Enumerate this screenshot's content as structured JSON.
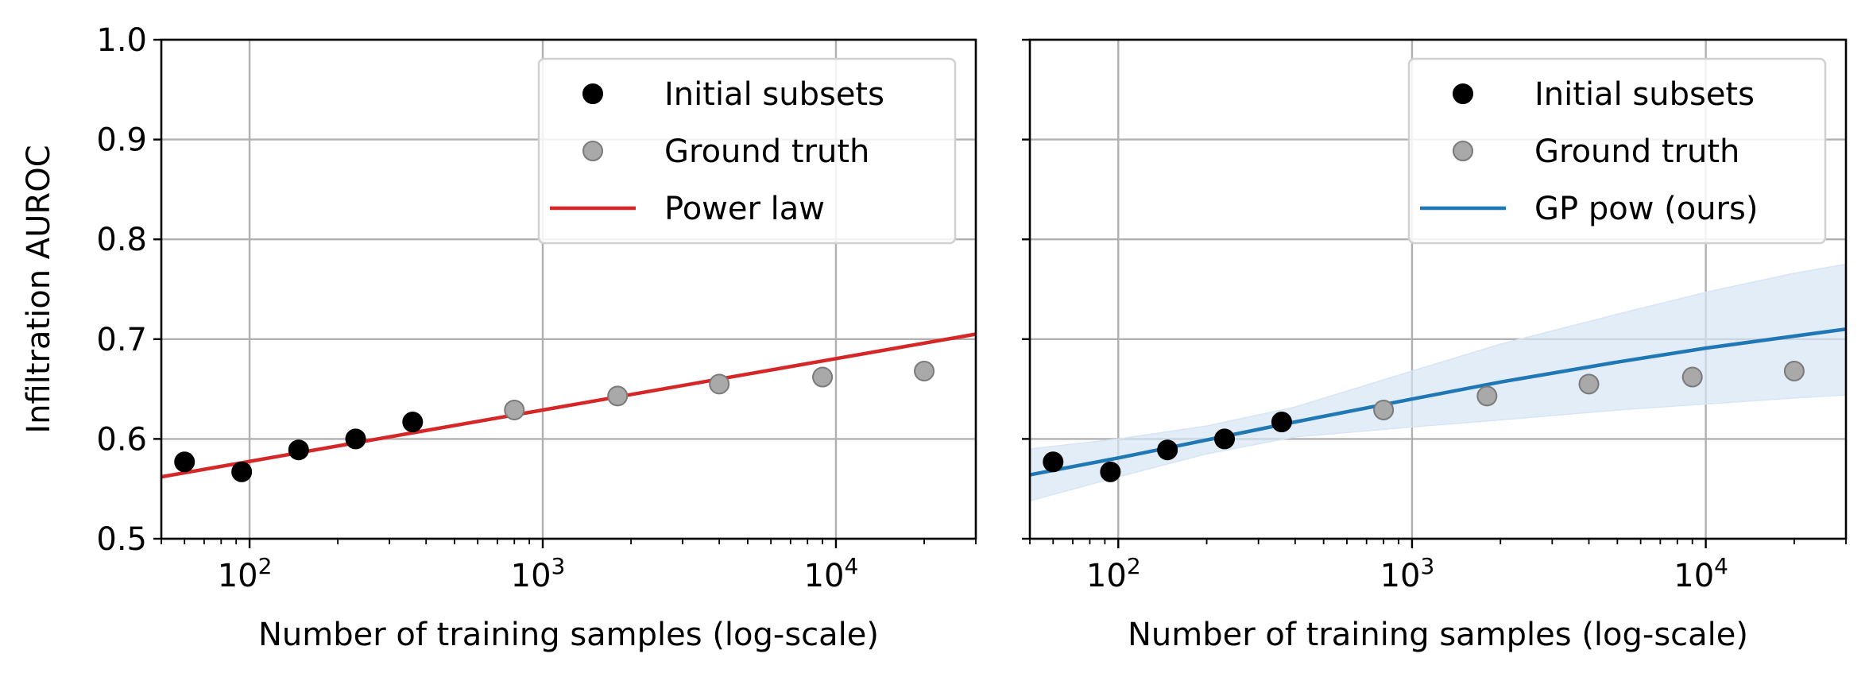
{
  "chart_data": [
    {
      "type": "scatter",
      "xlabel": "Number of training samples (log-scale)",
      "ylabel": "Infiltration AUROC",
      "xscale": "log",
      "xlim": [
        50,
        30000
      ],
      "ylim": [
        0.5,
        1.0
      ],
      "yticks": [
        "0.5",
        "0.6",
        "0.7",
        "0.8",
        "0.9",
        "1.0"
      ],
      "xticks": [
        {
          "base": "10",
          "exp": "2",
          "value": 100
        },
        {
          "base": "10",
          "exp": "3",
          "value": 1000
        },
        {
          "base": "10",
          "exp": "4",
          "value": 10000
        }
      ],
      "grid": true,
      "legend_position": "top-right",
      "series": [
        {
          "name": "Initial subsets",
          "kind": "scatter",
          "color": "#000000",
          "x": [
            60,
            94,
            147,
            230,
            360
          ],
          "y": [
            0.577,
            0.567,
            0.589,
            0.6,
            0.617
          ]
        },
        {
          "name": "Ground truth",
          "kind": "scatter",
          "color": "#a9a9a9",
          "x": [
            800,
            1800,
            4000,
            9000,
            20000
          ],
          "y": [
            0.629,
            0.643,
            0.655,
            0.662,
            0.668
          ]
        },
        {
          "name": "Power law",
          "kind": "line",
          "color": "#d62728",
          "x": [
            50,
            30000
          ],
          "y": [
            0.562,
            0.705
          ]
        }
      ]
    },
    {
      "type": "scatter",
      "xlabel": "Number of training samples (log-scale)",
      "ylabel": "",
      "xscale": "log",
      "xlim": [
        50,
        30000
      ],
      "ylim": [
        0.5,
        1.0
      ],
      "yticks": [],
      "xticks": [
        {
          "base": "10",
          "exp": "2",
          "value": 100
        },
        {
          "base": "10",
          "exp": "3",
          "value": 1000
        },
        {
          "base": "10",
          "exp": "4",
          "value": 10000
        }
      ],
      "grid": true,
      "legend_position": "top-right",
      "series": [
        {
          "name": "Initial subsets",
          "kind": "scatter",
          "color": "#000000",
          "x": [
            60,
            94,
            147,
            230,
            360
          ],
          "y": [
            0.577,
            0.567,
            0.589,
            0.6,
            0.617
          ]
        },
        {
          "name": "Ground truth",
          "kind": "scatter",
          "color": "#a9a9a9",
          "x": [
            800,
            1800,
            4000,
            9000,
            20000
          ],
          "y": [
            0.629,
            0.643,
            0.655,
            0.662,
            0.668
          ]
        },
        {
          "name": "GP pow (ours)",
          "kind": "line",
          "color": "#1f77b4",
          "x": [
            50,
            100,
            200,
            400,
            1000,
            2000,
            5000,
            10000,
            20000,
            30000
          ],
          "y": [
            0.564,
            0.581,
            0.599,
            0.617,
            0.64,
            0.657,
            0.677,
            0.691,
            0.703,
            0.71
          ],
          "band_lower": [
            0.538,
            0.562,
            0.585,
            0.602,
            0.612,
            0.619,
            0.629,
            0.635,
            0.641,
            0.644
          ],
          "band_upper": [
            0.59,
            0.6,
            0.613,
            0.632,
            0.668,
            0.695,
            0.725,
            0.747,
            0.766,
            0.775
          ],
          "band_color": "#d7e6f4"
        }
      ]
    }
  ]
}
